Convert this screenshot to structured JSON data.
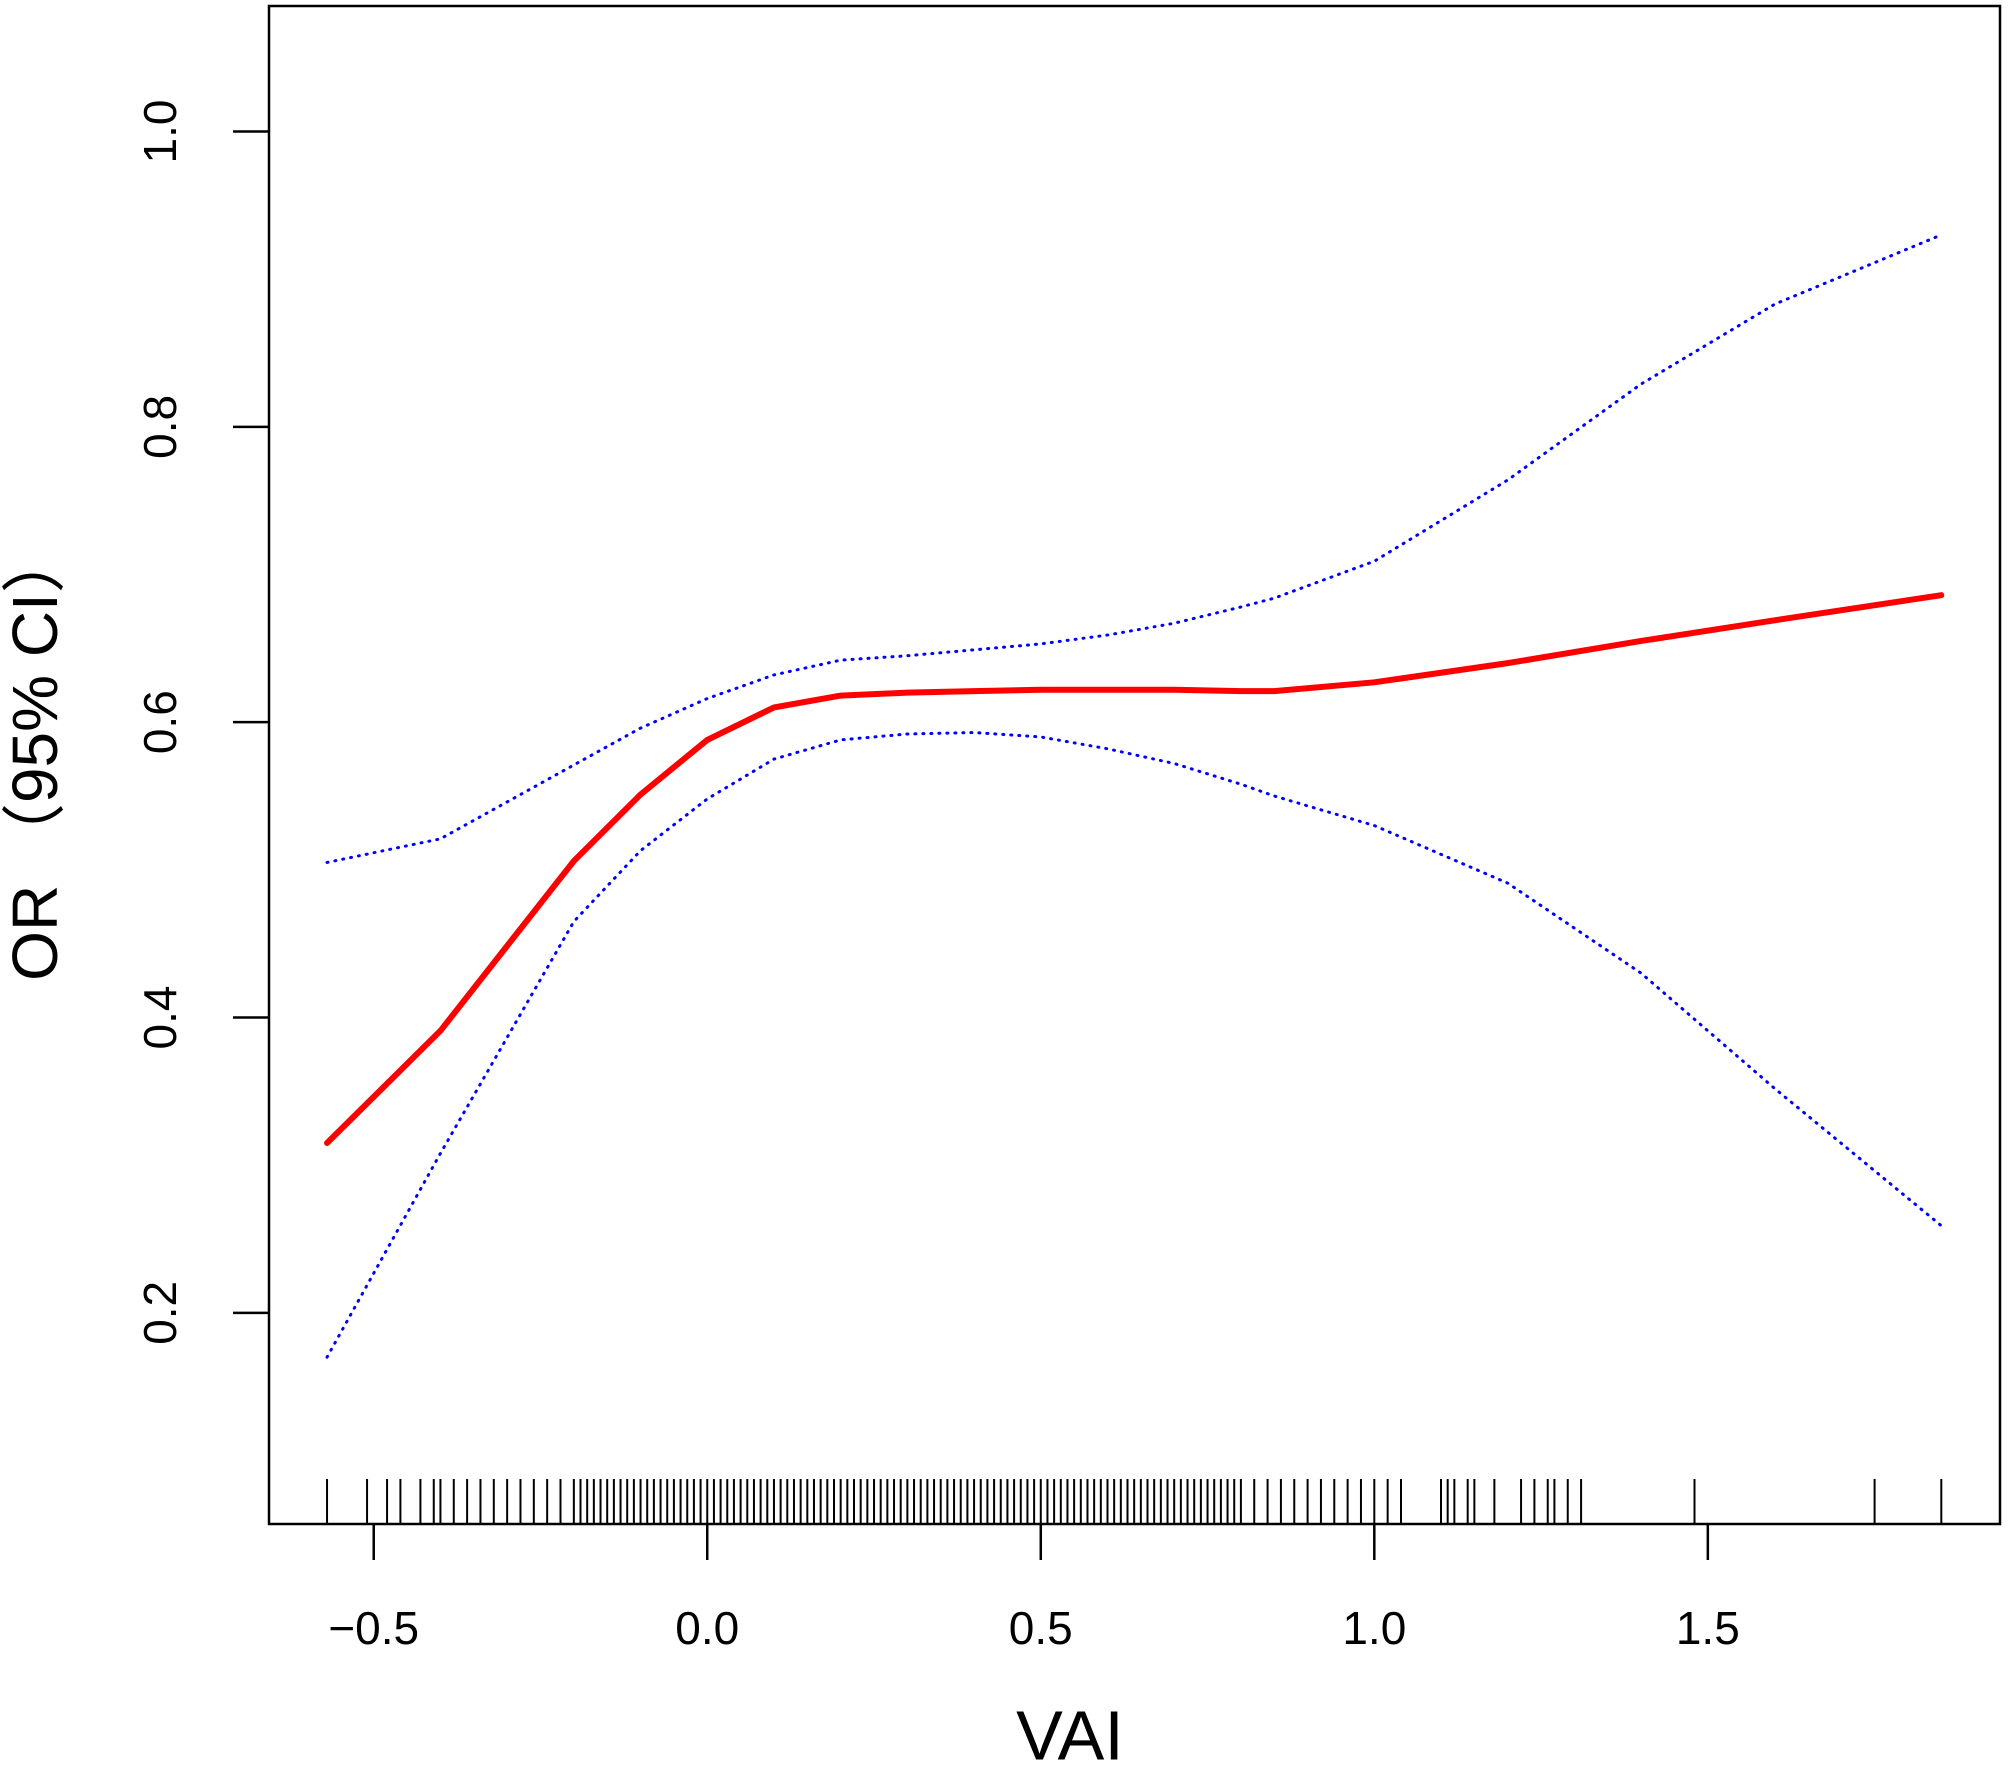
{
  "chart_data": {
    "type": "line",
    "xlabel": "VAI",
    "ylabel": "OR （95% CI）",
    "x": [
      -0.57,
      -0.4,
      -0.2,
      -0.1,
      0.0,
      0.1,
      0.2,
      0.3,
      0.4,
      0.5,
      0.6,
      0.7,
      0.8,
      0.85,
      1.0,
      1.2,
      1.4,
      1.6,
      1.85
    ],
    "series": [
      {
        "name": "OR",
        "color": "#ff0000",
        "style": "solid",
        "values": [
          0.315,
          0.391,
          0.506,
          0.551,
          0.588,
          0.61,
          0.618,
          0.62,
          0.621,
          0.622,
          0.622,
          0.622,
          0.621,
          0.621,
          0.627,
          0.64,
          0.655,
          0.669,
          0.686
        ]
      },
      {
        "name": "Upper 95% CI",
        "color": "#0000ff",
        "style": "dotted",
        "values": [
          0.505,
          0.521,
          0.571,
          0.596,
          0.616,
          0.632,
          0.642,
          0.645,
          0.649,
          0.653,
          0.659,
          0.667,
          0.678,
          0.684,
          0.709,
          0.764,
          0.829,
          0.883,
          0.93
        ]
      },
      {
        "name": "Lower 95% CI",
        "color": "#0000ff",
        "style": "dotted",
        "values": [
          0.17,
          0.308,
          0.465,
          0.513,
          0.548,
          0.575,
          0.588,
          0.592,
          0.593,
          0.59,
          0.582,
          0.572,
          0.558,
          0.55,
          0.53,
          0.491,
          0.43,
          0.352,
          0.259
        ]
      }
    ],
    "rug": [
      -0.57,
      -0.51,
      -0.48,
      -0.46,
      -0.43,
      -0.41,
      -0.4,
      -0.38,
      -0.36,
      -0.34,
      -0.32,
      -0.3,
      -0.28,
      -0.26,
      -0.24,
      -0.22,
      -0.2,
      -0.19,
      -0.18,
      -0.17,
      -0.16,
      -0.15,
      -0.14,
      -0.13,
      -0.12,
      -0.11,
      -0.1,
      -0.09,
      -0.08,
      -0.07,
      -0.06,
      -0.05,
      -0.04,
      -0.03,
      -0.02,
      -0.01,
      0.0,
      0.01,
      0.02,
      0.03,
      0.04,
      0.05,
      0.06,
      0.07,
      0.08,
      0.09,
      0.1,
      0.11,
      0.12,
      0.13,
      0.14,
      0.15,
      0.16,
      0.17,
      0.18,
      0.19,
      0.2,
      0.21,
      0.22,
      0.23,
      0.24,
      0.25,
      0.26,
      0.27,
      0.28,
      0.29,
      0.3,
      0.31,
      0.32,
      0.33,
      0.34,
      0.35,
      0.36,
      0.37,
      0.38,
      0.39,
      0.4,
      0.41,
      0.42,
      0.43,
      0.44,
      0.45,
      0.46,
      0.47,
      0.48,
      0.49,
      0.5,
      0.51,
      0.52,
      0.53,
      0.54,
      0.55,
      0.56,
      0.57,
      0.58,
      0.59,
      0.6,
      0.61,
      0.62,
      0.63,
      0.64,
      0.65,
      0.66,
      0.67,
      0.68,
      0.69,
      0.7,
      0.71,
      0.72,
      0.73,
      0.74,
      0.75,
      0.76,
      0.77,
      0.78,
      0.79,
      0.8,
      0.82,
      0.84,
      0.86,
      0.88,
      0.9,
      0.92,
      0.94,
      0.96,
      0.98,
      1.0,
      1.02,
      1.04,
      1.1,
      1.11,
      1.12,
      1.14,
      1.15,
      1.18,
      1.22,
      1.24,
      1.26,
      1.27,
      1.29,
      1.31,
      1.48,
      1.75,
      1.85
    ],
    "xlim": [
      -0.657,
      1.938
    ],
    "ylim": [
      0.057,
      1.085
    ],
    "xticks": [
      {
        "value": -0.5,
        "label": "−0.5"
      },
      {
        "value": 0,
        "label": "0.0"
      },
      0.5,
      {
        "value": 1,
        "label": "1.0"
      },
      1.5
    ],
    "yticks": [
      0.2,
      0.4,
      0.6,
      0.8,
      {
        "value": 1,
        "label": "1.0"
      }
    ],
    "grid": false
  }
}
